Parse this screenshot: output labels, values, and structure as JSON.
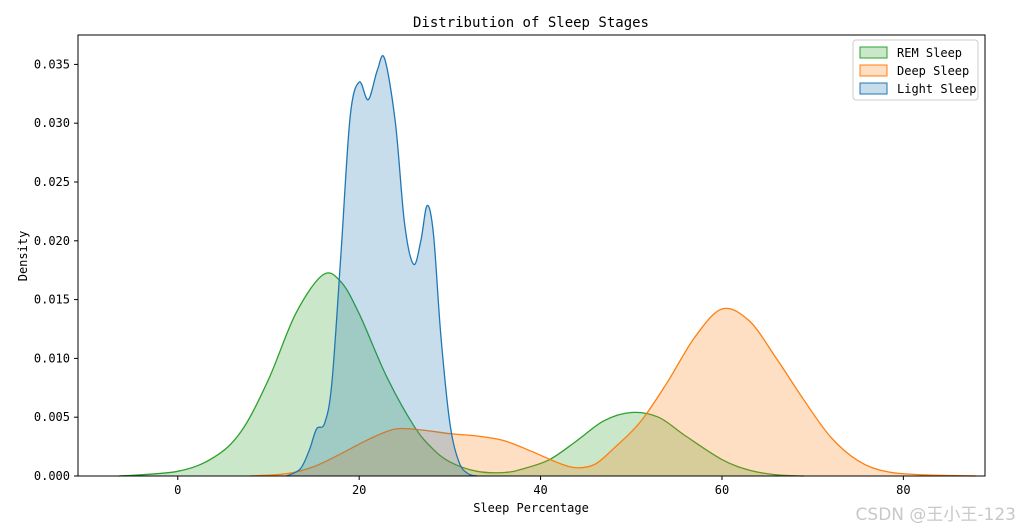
{
  "chart_data": {
    "type": "area",
    "title": "Distribution of Sleep Stages",
    "xlabel": "Sleep Percentage",
    "ylabel": "Density",
    "xlim": [
      -11,
      89
    ],
    "ylim": [
      0,
      0.0375
    ],
    "x_ticks": [
      "0",
      "20",
      "40",
      "60",
      "80"
    ],
    "y_ticks": [
      "0.000",
      "0.005",
      "0.010",
      "0.015",
      "0.020",
      "0.025",
      "0.030",
      "0.035"
    ],
    "grid": false,
    "legend_position": "top-right",
    "series": [
      {
        "name": "REM Sleep",
        "color": "#2ca02c",
        "points": [
          [
            -6.5,
            0
          ],
          [
            0,
            0.0004
          ],
          [
            4,
            0.0016
          ],
          [
            7,
            0.0038
          ],
          [
            10,
            0.0082
          ],
          [
            13,
            0.0138
          ],
          [
            16,
            0.0171
          ],
          [
            18,
            0.0165
          ],
          [
            20,
            0.0138
          ],
          [
            23,
            0.0085
          ],
          [
            26,
            0.0043
          ],
          [
            28,
            0.0024
          ],
          [
            30,
            0.0012
          ],
          [
            33,
            0.0004
          ],
          [
            36,
            0.0003
          ],
          [
            38,
            0.0006
          ],
          [
            41,
            0.0014
          ],
          [
            44,
            0.003
          ],
          [
            47,
            0.0047
          ],
          [
            50,
            0.0054
          ],
          [
            53,
            0.005
          ],
          [
            56,
            0.0034
          ],
          [
            60,
            0.0014
          ],
          [
            63,
            0.0005
          ],
          [
            66,
            0.0001
          ],
          [
            69,
            0
          ]
        ]
      },
      {
        "name": "Deep Sleep",
        "color": "#ff7f0e",
        "points": [
          [
            8,
            0
          ],
          [
            12,
            0.0002
          ],
          [
            15,
            0.0008
          ],
          [
            18,
            0.0019
          ],
          [
            21,
            0.0031
          ],
          [
            24,
            0.004
          ],
          [
            27,
            0.0039
          ],
          [
            30,
            0.0036
          ],
          [
            33,
            0.0034
          ],
          [
            36,
            0.003
          ],
          [
            39,
            0.0021
          ],
          [
            42,
            0.0011
          ],
          [
            44,
            0.0007
          ],
          [
            46,
            0.001
          ],
          [
            48,
            0.0023
          ],
          [
            51,
            0.0046
          ],
          [
            54,
            0.008
          ],
          [
            57,
            0.0118
          ],
          [
            60,
            0.0142
          ],
          [
            63,
            0.0132
          ],
          [
            66,
            0.01
          ],
          [
            69,
            0.0065
          ],
          [
            72,
            0.0033
          ],
          [
            75,
            0.0013
          ],
          [
            78,
            0.0004
          ],
          [
            82,
            0.0001
          ],
          [
            88,
            0
          ]
        ]
      },
      {
        "name": "Light Sleep",
        "color": "#1f77b4",
        "points": [
          [
            12,
            0
          ],
          [
            13.5,
            0.0006
          ],
          [
            14.5,
            0.0022
          ],
          [
            15.3,
            0.004
          ],
          [
            16.2,
            0.0045
          ],
          [
            17,
            0.008
          ],
          [
            18,
            0.019
          ],
          [
            19,
            0.0305
          ],
          [
            20,
            0.0335
          ],
          [
            21,
            0.032
          ],
          [
            22,
            0.0345
          ],
          [
            22.8,
            0.0355
          ],
          [
            24,
            0.03
          ],
          [
            25,
            0.0215
          ],
          [
            26,
            0.018
          ],
          [
            26.8,
            0.02
          ],
          [
            27.5,
            0.023
          ],
          [
            28.2,
            0.0205
          ],
          [
            29,
            0.012
          ],
          [
            30,
            0.0045
          ],
          [
            31,
            0.0012
          ],
          [
            32,
            0.0002
          ],
          [
            33,
            0
          ]
        ]
      }
    ]
  },
  "watermark": "CSDN @王小王-123"
}
